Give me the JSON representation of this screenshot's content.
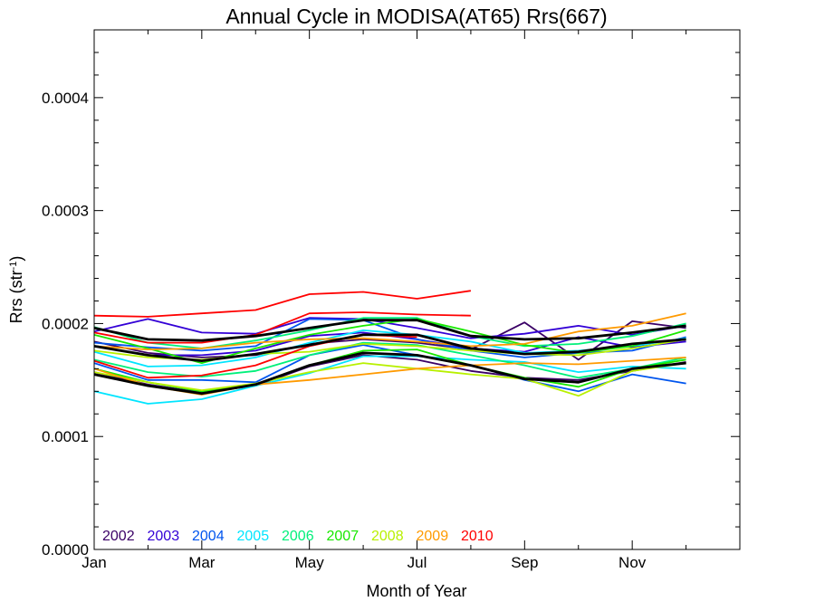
{
  "chart_data": {
    "type": "line",
    "title": "Annual Cycle in MODISA(AT65) Rrs(667)",
    "xlabel": "Month of Year",
    "ylabel": "Rrs (str",
    "ylabel_sup": "-1",
    "ylabel_close": ")",
    "x": [
      1,
      2,
      3,
      4,
      5,
      6,
      7,
      8,
      9,
      10,
      11,
      12
    ],
    "xlim": [
      1,
      13
    ],
    "ylim": [
      0,
      0.00046
    ],
    "x_ticks": [
      {
        "value": 1,
        "label": "Jan"
      },
      {
        "value": 3,
        "label": "Mar"
      },
      {
        "value": 5,
        "label": "May"
      },
      {
        "value": 7,
        "label": "Jul"
      },
      {
        "value": 9,
        "label": "Sep"
      },
      {
        "value": 11,
        "label": "Nov"
      }
    ],
    "y_ticks": [
      {
        "value": 0,
        "label": "0.0000"
      },
      {
        "value": 0.0001,
        "label": "0.0001"
      },
      {
        "value": 0.0002,
        "label": "0.0002"
      },
      {
        "value": 0.0003,
        "label": "0.0003"
      },
      {
        "value": 0.0004,
        "label": "0.0004"
      }
    ],
    "grid": false,
    "legend_position": "bottom-left",
    "series": [
      {
        "name": "2002",
        "color": "#3a0066",
        "lines": [
          [
            0.000184,
            0.000174,
            0.00017,
            0.000172,
            0.000182,
            0.000186,
            0.000183,
            0.000177,
            0.000201,
            0.000168,
            0.000202,
            0.000196
          ],
          [
            0.000157,
            0.000146,
            0.000139,
            0.000145,
            0.000162,
            0.000172,
            0.000168,
            0.000158,
            0.000152,
            0.00015,
            0.000158,
            0.000166
          ]
        ]
      },
      {
        "name": "2003",
        "color": "#3300d6",
        "lines": [
          [
            0.000193,
            0.000204,
            0.000192,
            0.000191,
            0.000205,
            0.000204,
            0.000196,
            0.000187,
            0.000191,
            0.000198,
            0.00019,
            0.000198
          ],
          [
            0.00018,
            0.000172,
            0.000172,
            0.000176,
            0.000189,
            0.000192,
            0.000186,
            0.000178,
            0.000175,
            0.000188,
            0.000179,
            0.000184
          ]
        ]
      },
      {
        "name": "2004",
        "color": "#0055ee",
        "lines": [
          [
            0.000183,
            0.000179,
            0.000176,
            0.00018,
            0.000204,
            0.000203,
            0.000186,
            0.000176,
            0.00017,
            0.000174,
            0.000176,
            0.000188
          ],
          [
            0.000165,
            0.00015,
            0.00015,
            0.000148,
            0.000172,
            0.000181,
            0.000172,
            0.000163,
            0.00015,
            0.00014,
            0.000155,
            0.000147
          ]
        ]
      },
      {
        "name": "2005",
        "color": "#00e5ff",
        "lines": [
          [
            0.00014,
            0.000129,
            0.000133,
            0.000145,
            0.000156,
            0.000171,
            0.000171,
            0.000168,
            0.000166,
            0.000157,
            0.000162,
            0.00016
          ],
          [
            0.000175,
            0.000162,
            0.000163,
            0.00017,
            0.000183,
            0.000194,
            0.00019,
            0.000184,
            0.000174,
            0.000176,
            0.00018,
            0.000187
          ]
        ]
      },
      {
        "name": "2006",
        "color": "#00f07a",
        "lines": [
          [
            0.000197,
            0.000183,
            0.000178,
            0.000185,
            0.000194,
            0.000205,
            0.000205,
            0.000189,
            0.00018,
            0.000182,
            0.000189,
            0.0002
          ],
          [
            0.000168,
            0.000157,
            0.000153,
            0.000158,
            0.000172,
            0.000183,
            0.000181,
            0.000172,
            0.000163,
            0.000152,
            0.00016,
            0.00017
          ]
        ]
      },
      {
        "name": "2007",
        "color": "#19e800",
        "lines": [
          [
            0.00019,
            0.000178,
            0.000165,
            0.000178,
            0.00019,
            0.000198,
            0.000204,
            0.000193,
            0.000181,
            0.000174,
            0.00018,
            0.000194
          ],
          [
            0.00016,
            0.000148,
            0.00014,
            0.000146,
            0.000163,
            0.000176,
            0.000177,
            0.000163,
            0.000152,
            0.000144,
            0.00016,
            0.000168
          ]
        ]
      },
      {
        "name": "2008",
        "color": "#b8f000",
        "lines": [
          [
            0.000176,
            0.00017,
            0.000168,
            0.000173,
            0.000175,
            0.000182,
            0.00018,
            0.000176,
            0.000173,
            0.000172,
            0.000178,
            0.000186
          ],
          [
            0.000157,
            0.000148,
            0.000141,
            0.000147,
            0.000157,
            0.000165,
            0.00016,
            0.000155,
            0.000151,
            0.000136,
            0.000158,
            0.000165
          ]
        ]
      },
      {
        "name": "2009",
        "color": "#ff9a00",
        "lines": [
          [
            0.00016,
            0.000145,
            0.000137,
            0.000146,
            0.00015,
            0.000155,
            0.00016,
            0.000163,
            0.000165,
            0.000164,
            0.000167,
            0.00017
          ],
          [
            0.00018,
            0.000177,
            0.000178,
            0.000183,
            0.000186,
            0.000187,
            0.000184,
            0.00018,
            0.000182,
            0.000193,
            0.000198,
            0.000209
          ]
        ]
      },
      {
        "name": "2010",
        "color": "#ff0000",
        "lines": [
          [
            0.000207,
            0.000206,
            0.000209,
            0.000212,
            0.000226,
            0.000228,
            0.000222,
            0.000229,
            null,
            null,
            null,
            null
          ],
          [
            0.000192,
            0.000183,
            0.000183,
            0.00019,
            0.000209,
            0.00021,
            0.000208,
            0.000207,
            null,
            null,
            null,
            null
          ],
          [
            0.000167,
            0.000152,
            0.000154,
            0.000163,
            0.00018,
            0.00019,
            0.000188,
            null,
            null,
            null,
            null,
            null
          ]
        ]
      }
    ],
    "climatology": {
      "color": "#000000",
      "lines": [
        [
          0.000196,
          0.000186,
          0.000185,
          0.000189,
          0.000196,
          0.000203,
          0.000203,
          0.000189,
          0.000186,
          0.000187,
          0.000192,
          0.000198
        ],
        [
          0.00018,
          0.000172,
          0.000167,
          0.000173,
          0.000181,
          0.00019,
          0.00019,
          0.000178,
          0.000173,
          0.000175,
          0.000182,
          0.000186
        ],
        [
          0.000155,
          0.000145,
          0.000138,
          0.000146,
          0.000163,
          0.000174,
          0.000172,
          0.000163,
          0.000151,
          0.000148,
          0.00016,
          0.000165
        ]
      ]
    }
  }
}
